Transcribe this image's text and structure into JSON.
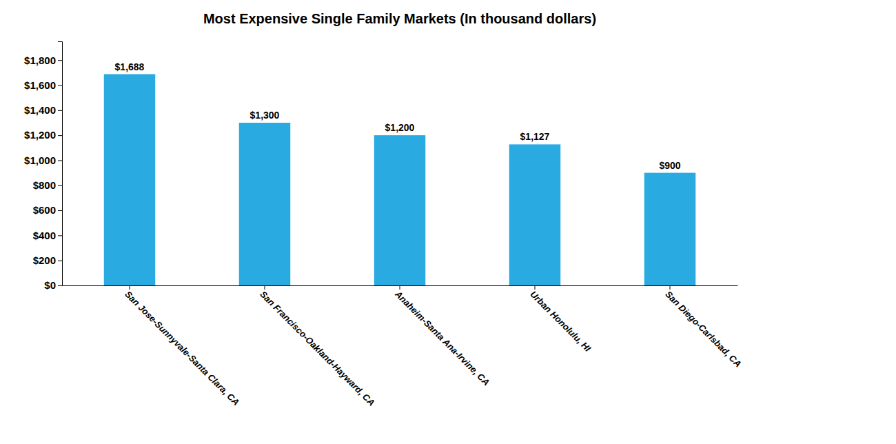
{
  "chart_data": {
    "type": "bar",
    "title": "Most Expensive Single Family Markets (In thousand dollars)",
    "categories": [
      "San Jose-Sunnyvale-Santa Clara, CA",
      "San Francisco-Oakland-Hayward, CA",
      "Anaheim-Santa Ana-Irvine, CA",
      "Urban Honolulu, HI",
      "San Diego-Carlsbad, CA"
    ],
    "values": [
      1688,
      1300,
      1200,
      1127,
      900
    ],
    "value_labels": [
      "$1,688",
      "$1,300",
      "$1,200",
      "$1,127",
      "$900"
    ],
    "data_labels": true,
    "color": "#29ABE2",
    "ylim": [
      0,
      1950
    ],
    "yticks": [
      {
        "value": 0,
        "label": "$0"
      },
      {
        "value": 200,
        "label": "$200"
      },
      {
        "value": 400,
        "label": "$400"
      },
      {
        "value": 600,
        "label": "$600"
      },
      {
        "value": 800,
        "label": "$800"
      },
      {
        "value": 1000,
        "label": "$1,000"
      },
      {
        "value": 1200,
        "label": "$1,200"
      },
      {
        "value": 1400,
        "label": "$1,400"
      },
      {
        "value": 1600,
        "label": "$1,600"
      },
      {
        "value": 1800,
        "label": "$1,800"
      }
    ],
    "grid": false
  }
}
